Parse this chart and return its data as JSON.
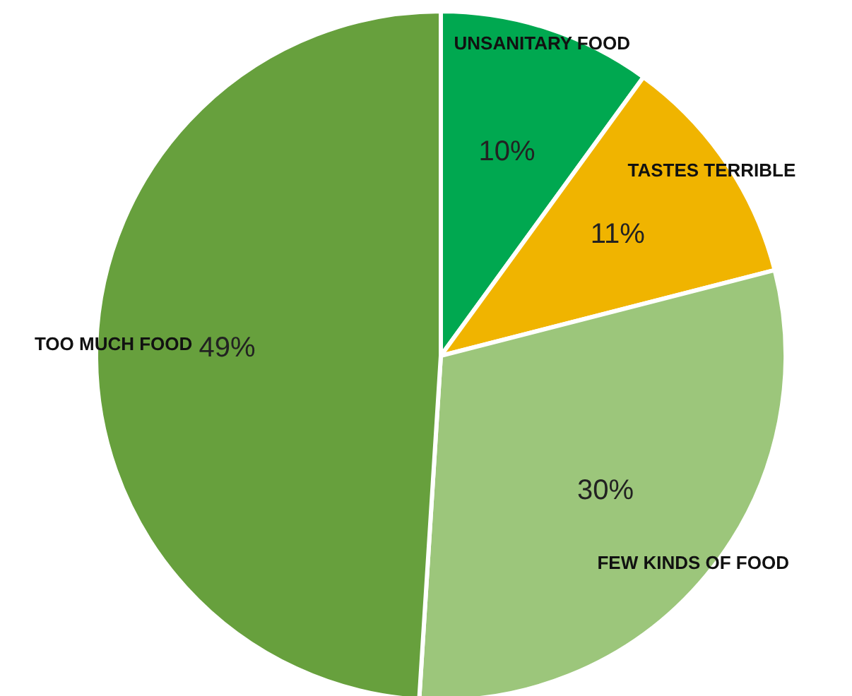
{
  "chart_data": {
    "type": "pie",
    "categories": [
      "UNSANITARY FOOD",
      "TASTES TERRIBLE",
      "FEW KINDS OF FOOD",
      "TOO MUCH FOOD"
    ],
    "values": [
      10,
      11,
      30,
      49
    ],
    "colors": [
      "#00a850",
      "#f0b400",
      "#9cc67b",
      "#67a03d"
    ],
    "value_labels": [
      "10%",
      "11%",
      "30%",
      "49%"
    ]
  }
}
